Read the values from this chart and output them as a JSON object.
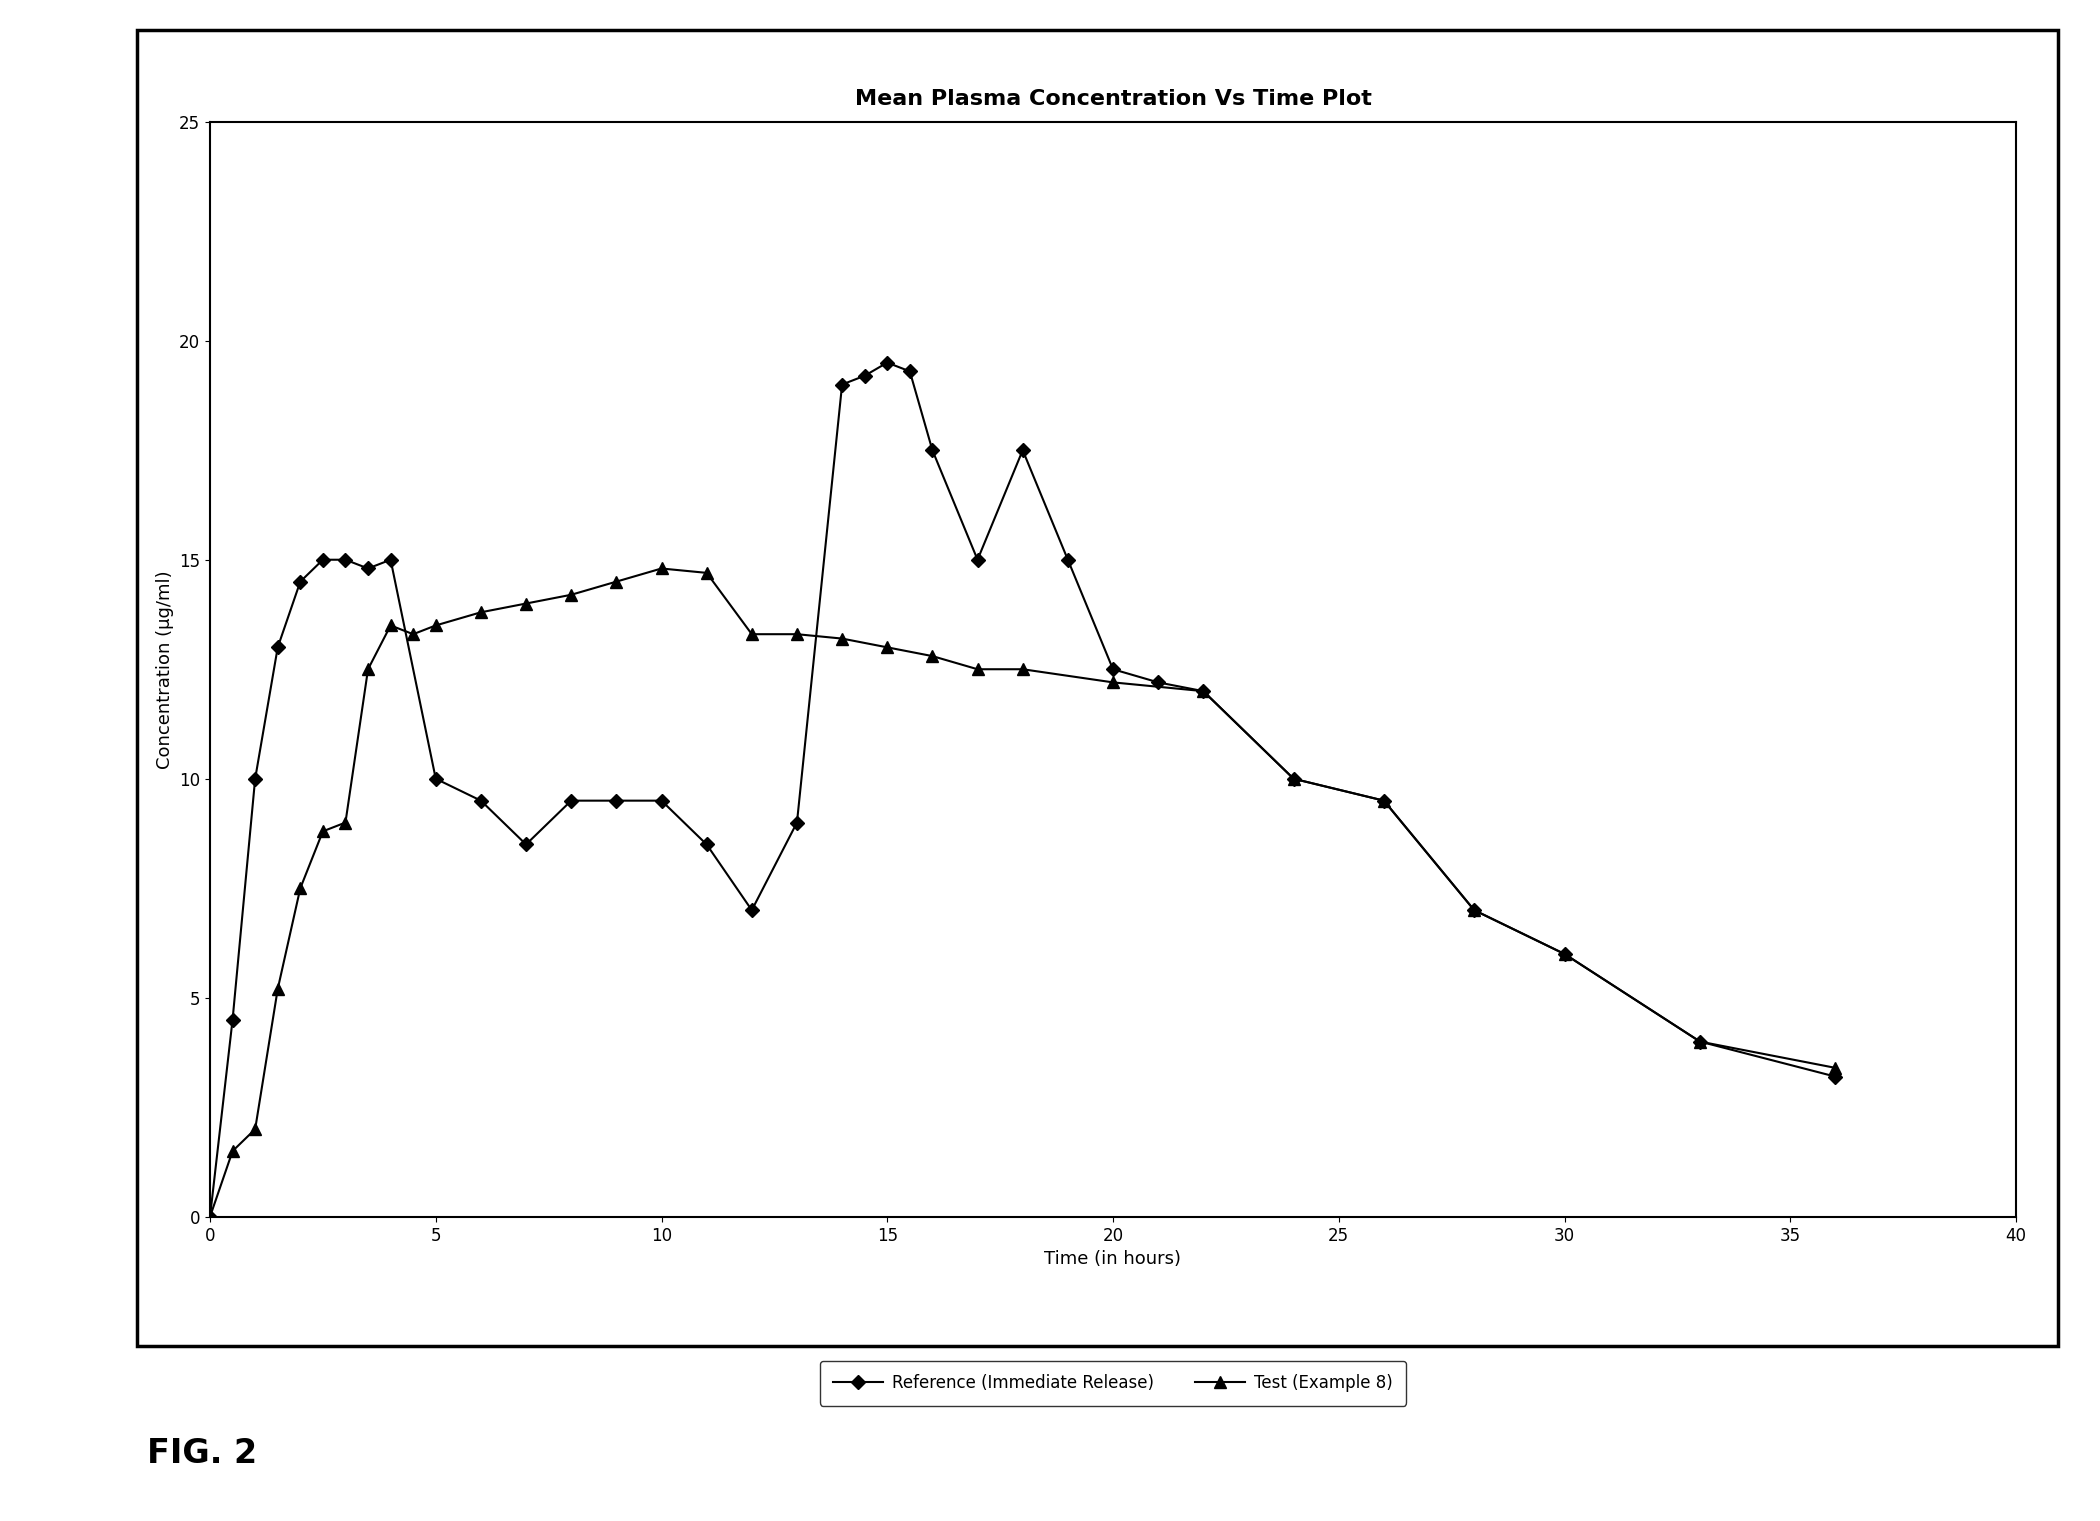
{
  "title": "Mean Plasma Concentration Vs Time Plot",
  "xlabel": "Time (in hours)",
  "ylabel": "Concentration (µg/ml)",
  "xlim": [
    0,
    40
  ],
  "ylim": [
    0,
    25
  ],
  "xticks": [
    0,
    5,
    10,
    15,
    20,
    25,
    30,
    35,
    40
  ],
  "yticks": [
    0,
    5,
    10,
    15,
    20,
    25
  ],
  "reference_x": [
    0,
    0.5,
    1,
    1.5,
    2,
    2.5,
    3,
    3.5,
    4,
    5,
    6,
    7,
    8,
    9,
    10,
    11,
    12,
    13,
    14,
    14.5,
    15,
    15.5,
    16,
    17,
    18,
    19,
    20,
    21,
    22,
    24,
    26,
    28,
    30,
    33,
    36
  ],
  "reference_y": [
    0,
    4.5,
    10,
    13,
    14.5,
    15,
    15,
    14.8,
    15.0,
    10.0,
    9.5,
    8.5,
    9.5,
    9.5,
    9.5,
    8.5,
    7.0,
    9.0,
    19.0,
    19.2,
    19.5,
    19.3,
    17.5,
    15.0,
    17.5,
    15.0,
    12.5,
    12.2,
    12.0,
    10.0,
    9.5,
    7.0,
    6.0,
    4.0,
    3.2
  ],
  "test_x": [
    0,
    0.5,
    1,
    1.5,
    2,
    2.5,
    3,
    3.5,
    4,
    4.5,
    5,
    6,
    7,
    8,
    9,
    10,
    11,
    12,
    13,
    14,
    15,
    16,
    17,
    18,
    20,
    22,
    24,
    26,
    28,
    30,
    33,
    36
  ],
  "test_y": [
    0,
    1.5,
    2.0,
    5.2,
    7.5,
    8.8,
    9.0,
    12.5,
    13.5,
    13.3,
    13.5,
    13.8,
    14.0,
    14.2,
    14.5,
    14.8,
    14.7,
    13.3,
    13.3,
    13.2,
    13.0,
    12.8,
    12.5,
    12.5,
    12.2,
    12.0,
    10.0,
    9.5,
    7.0,
    6.0,
    4.0,
    3.4
  ],
  "ref_color": "#000000",
  "test_color": "#000000",
  "ref_label": "Reference (Immediate Release)",
  "test_label": "Test (Example 8)",
  "fig_width": 21.0,
  "fig_height": 15.21,
  "background_color": "#ffffff",
  "fig_label": "FIG. 2",
  "title_fontsize": 16,
  "axis_label_fontsize": 13,
  "tick_fontsize": 12,
  "legend_fontsize": 12
}
